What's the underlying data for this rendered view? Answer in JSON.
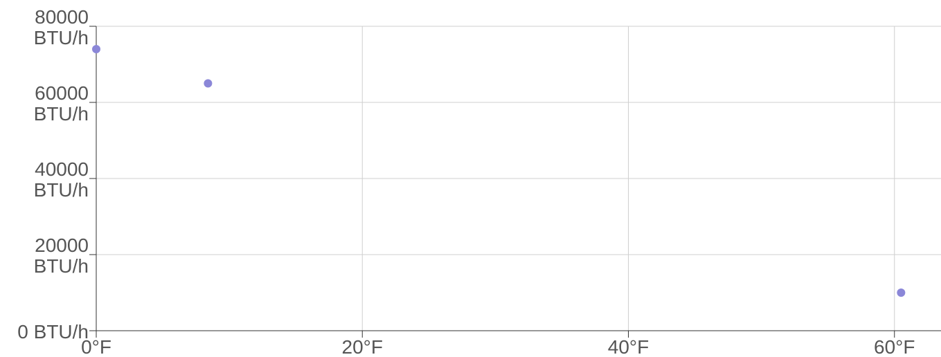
{
  "chart_data": {
    "type": "scatter",
    "title": "",
    "xlabel": "",
    "ylabel": "",
    "xlim": [
      0,
      63.5
    ],
    "ylim": [
      0,
      80000
    ],
    "x_ticks": [
      0,
      20,
      40,
      60
    ],
    "y_ticks": [
      0,
      20000,
      40000,
      60000,
      80000
    ],
    "x_tick_labels": [
      "0°F",
      "20°F",
      "40°F",
      "60°F"
    ],
    "y_tick_labels": [
      [
        "0 BTU/h"
      ],
      [
        "20000",
        "BTU/h"
      ],
      [
        "40000",
        "BTU/h"
      ],
      [
        "60000",
        "BTU/h"
      ],
      [
        "80000",
        "BTU/h"
      ]
    ],
    "grid": true,
    "legend": "none",
    "series": [
      {
        "color": "#8b87d8",
        "points": [
          {
            "x": 0,
            "y": 74000
          },
          {
            "x": 8.4,
            "y": 65000
          },
          {
            "x": 60.5,
            "y": 10000
          }
        ]
      }
    ]
  }
}
